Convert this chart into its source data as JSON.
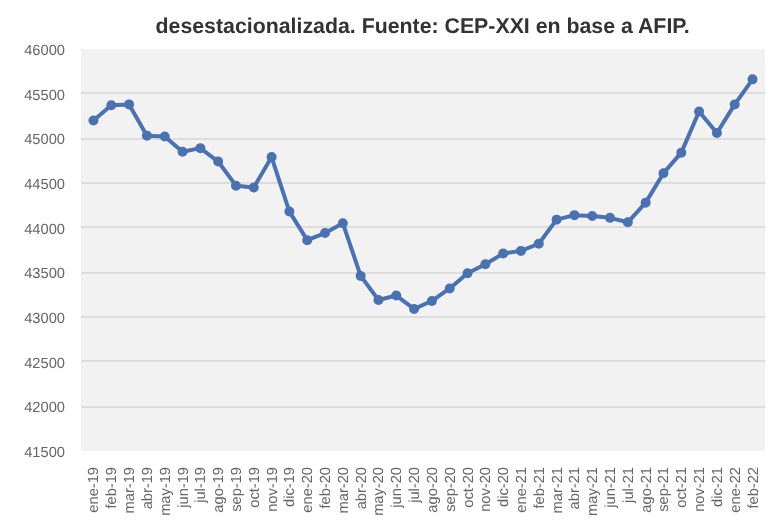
{
  "chart_data": {
    "type": "line",
    "title": "desestacionalizada. Fuente: CEP-XXI en base a AFIP.",
    "categories": [
      "ene-19",
      "feb-19",
      "mar-19",
      "abr-19",
      "may-19",
      "jun-19",
      "jul-19",
      "ago-19",
      "sep-19",
      "oct-19",
      "nov-19",
      "dic-19",
      "ene-20",
      "feb-20",
      "mar-20",
      "abr-20",
      "may-20",
      "jun-20",
      "jul-20",
      "ago-20",
      "sep-20",
      "oct-20",
      "nov-20",
      "dic-20",
      "ene-21",
      "feb-21",
      "mar-21",
      "abr-21",
      "may-21",
      "jun-21",
      "jul-21",
      "ago-21",
      "sep-21",
      "oct-21",
      "nov-21",
      "dic-21",
      "ene-22",
      "feb-22"
    ],
    "series": [
      {
        "color": "#4a72b0",
        "values": [
          45200,
          45370,
          45380,
          45030,
          45020,
          44850,
          44890,
          44740,
          44470,
          44450,
          44790,
          44180,
          43860,
          43940,
          44050,
          43460,
          43190,
          43240,
          43090,
          43180,
          43320,
          43490,
          43590,
          43710,
          43740,
          43820,
          44090,
          44140,
          44130,
          44110,
          44060,
          44280,
          44610,
          44840,
          45300,
          45060,
          45380,
          45660
        ]
      }
    ],
    "ylim": [
      41500,
      46000
    ],
    "yticks": [
      41500,
      42000,
      42500,
      43000,
      43500,
      44000,
      44500,
      45000,
      45500,
      46000
    ],
    "grid": "y",
    "marker": "circle",
    "line_style": "solid"
  }
}
